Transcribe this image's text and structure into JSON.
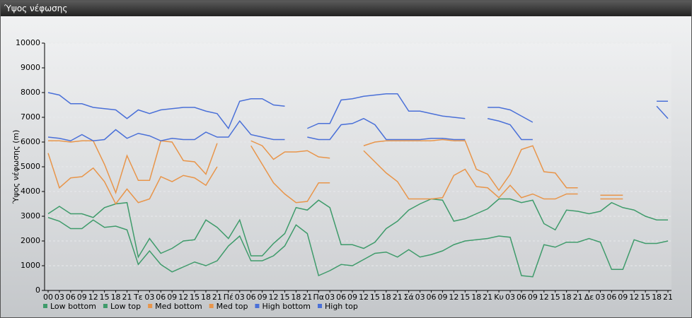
{
  "chart_data": {
    "type": "line",
    "title": "Ύψος νέφωσης",
    "y_label": "Ύψος νέφωσης (m)",
    "categories": [
      "00",
      "03",
      "06",
      "09",
      "12",
      "15",
      "18",
      "21",
      "Τε",
      "03",
      "06",
      "09",
      "12",
      "15",
      "18",
      "21",
      "Πέ",
      "03",
      "06",
      "09",
      "12",
      "15",
      "18",
      "21",
      "Πα",
      "03",
      "06",
      "09",
      "12",
      "15",
      "18",
      "21",
      "Σά",
      "03",
      "06",
      "09",
      "12",
      "15",
      "18",
      "21",
      "Κυ",
      "03",
      "06",
      "09",
      "12",
      "15",
      "18",
      "21",
      "Δε",
      "03",
      "06",
      "09",
      "12",
      "15",
      "18",
      "21"
    ],
    "ylim": [
      0,
      10000
    ],
    "yticks": [
      0,
      1000,
      2000,
      3000,
      4000,
      5000,
      6000,
      7000,
      8000,
      9000,
      10000
    ],
    "grid": true,
    "series": [
      {
        "name": "Low bottom",
        "color": "#3f9b6b",
        "values": [
          2950,
          2800,
          2500,
          2500,
          2850,
          2550,
          2600,
          2450,
          1050,
          1600,
          1050,
          750,
          950,
          1150,
          1000,
          1200,
          1800,
          2200,
          1200,
          1200,
          1400,
          1800,
          2650,
          2300,
          600,
          800,
          1050,
          1000,
          1250,
          1500,
          1550,
          1350,
          1650,
          1350,
          1450,
          1600,
          1850,
          2000,
          2050,
          2100,
          2200,
          2150,
          600,
          550,
          1850,
          1750,
          1950,
          1950,
          2100,
          1950,
          850,
          850,
          2050,
          1900,
          1900,
          2000
        ]
      },
      {
        "name": "Low top",
        "color": "#3f9b6b",
        "values": [
          3100,
          3400,
          3100,
          3100,
          2950,
          3350,
          3500,
          3550,
          1350,
          2100,
          1500,
          1700,
          2000,
          2050,
          2850,
          2550,
          2100,
          2850,
          1400,
          1400,
          1900,
          2300,
          3350,
          3250,
          3650,
          3350,
          1850,
          1850,
          1700,
          1950,
          2500,
          2800,
          3250,
          3500,
          3700,
          3650,
          2800,
          2900,
          3100,
          3300,
          3700,
          3700,
          3550,
          3650,
          2700,
          2450,
          3250,
          3200,
          3100,
          3200,
          3550,
          3350,
          3250,
          3000,
          2850,
          2850
        ]
      },
      {
        "name": "Med bottom",
        "color": "#e8954a",
        "values": [
          5550,
          4150,
          4550,
          4600,
          4950,
          4400,
          3500,
          4100,
          3550,
          3700,
          4600,
          4400,
          4650,
          4550,
          4250,
          5000,
          null,
          null,
          5850,
          5100,
          4350,
          3900,
          3550,
          3600,
          4350,
          4350,
          null,
          null,
          5650,
          5200,
          4750,
          4400,
          3700,
          3700,
          3700,
          3750,
          4650,
          4900,
          4200,
          4150,
          3750,
          4250,
          3750,
          3900,
          3700,
          3700,
          3900,
          3900,
          null,
          3700,
          3700,
          3700,
          null,
          null,
          null,
          null
        ]
      },
      {
        "name": "Med top",
        "color": "#e8954a",
        "values": [
          6050,
          6050,
          6000,
          6050,
          6050,
          5100,
          3950,
          5450,
          4450,
          4450,
          6050,
          6000,
          5250,
          5200,
          4700,
          5950,
          null,
          null,
          6050,
          5850,
          5300,
          5600,
          5600,
          5650,
          5400,
          5350,
          null,
          null,
          5850,
          6000,
          6050,
          6050,
          6050,
          6050,
          6050,
          6100,
          6050,
          6050,
          4900,
          4700,
          4050,
          4700,
          5700,
          5850,
          4800,
          4750,
          4150,
          4150,
          null,
          3850,
          3850,
          3850,
          null,
          null,
          null,
          null
        ]
      },
      {
        "name": "High bottom",
        "color": "#4a70d8",
        "values": [
          6200,
          6150,
          6050,
          6300,
          6050,
          6100,
          6500,
          6150,
          6350,
          6250,
          6050,
          6150,
          6100,
          6100,
          6400,
          6200,
          6200,
          6850,
          6300,
          6200,
          6100,
          6100,
          null,
          6200,
          6100,
          6100,
          6700,
          6750,
          6950,
          6700,
          6100,
          6100,
          6100,
          6100,
          6150,
          6150,
          6100,
          6100,
          null,
          6950,
          6850,
          6700,
          6100,
          6100,
          null,
          null,
          null,
          null,
          null,
          null,
          null,
          null,
          null,
          null,
          7450,
          6950
        ]
      },
      {
        "name": "High top",
        "color": "#4a70d8",
        "values": [
          8000,
          7900,
          7550,
          7550,
          7400,
          7350,
          7300,
          6950,
          7300,
          7150,
          7300,
          7350,
          7400,
          7400,
          7250,
          7150,
          6550,
          7650,
          7750,
          7750,
          7500,
          7450,
          null,
          6550,
          6750,
          6750,
          7700,
          7750,
          7850,
          7900,
          7950,
          7950,
          7250,
          7250,
          7150,
          7050,
          7000,
          6950,
          null,
          7400,
          7400,
          7300,
          7050,
          6800,
          null,
          null,
          null,
          null,
          null,
          null,
          null,
          null,
          null,
          null,
          7650,
          7650
        ]
      }
    ]
  }
}
